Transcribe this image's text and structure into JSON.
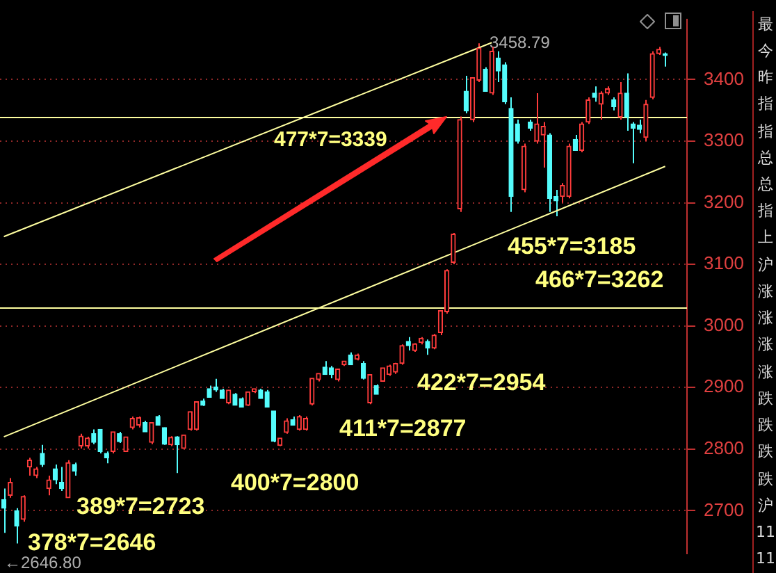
{
  "chart_data": {
    "type": "candlestick",
    "categories": [
      null,
      null,
      null,
      null,
      null,
      null,
      null,
      null,
      null,
      null,
      null,
      null,
      null,
      null,
      null,
      null,
      null,
      null,
      null,
      null,
      null,
      null,
      null,
      null,
      null,
      null,
      null,
      null,
      null,
      null,
      null,
      null,
      null,
      null,
      null,
      null,
      null,
      null,
      null,
      null,
      null,
      null,
      null,
      null,
      null,
      null,
      null,
      null,
      null,
      null,
      null,
      null,
      null,
      null,
      null,
      null,
      null,
      null,
      null,
      null,
      null,
      null,
      null,
      null,
      null,
      null,
      null,
      null,
      null,
      null,
      null,
      null,
      null,
      null,
      null,
      null,
      null,
      null,
      null,
      null,
      null,
      null,
      null,
      null,
      null,
      null,
      null,
      null,
      null,
      null,
      null,
      null,
      null,
      null,
      null,
      null,
      null,
      null,
      null,
      null,
      null,
      null,
      null,
      null
    ],
    "ohlc": [
      [
        2718,
        2736,
        2664,
        2704
      ],
      [
        2725,
        2753,
        2721,
        2746
      ],
      [
        2700,
        2704,
        2646.8,
        2675
      ],
      [
        2686,
        2725,
        2682,
        2723
      ],
      [
        2771,
        2786,
        2757,
        2782
      ],
      [
        2757,
        2771,
        2753,
        2768
      ],
      [
        2793,
        2807,
        2771,
        2775
      ],
      [
        2736,
        2757,
        2725,
        2750
      ],
      [
        2768,
        2775,
        2743,
        2750
      ],
      [
        2746,
        2771,
        2732,
        2736
      ],
      [
        2721,
        2782,
        2721,
        2778
      ],
      [
        2775,
        2778,
        2757,
        2764
      ],
      [
        2805,
        2825,
        2801,
        2821
      ],
      [
        2805,
        2820,
        2801,
        2818
      ],
      [
        2825,
        2832,
        2808,
        2811
      ],
      [
        2832,
        2832,
        2793,
        2796
      ],
      [
        2793,
        2796,
        2777,
        2786
      ],
      [
        2796,
        2828,
        2793,
        2828
      ],
      [
        2825,
        2828,
        2810,
        2812
      ],
      [
        2796,
        2820,
        2796,
        2820
      ],
      [
        2835,
        2853,
        2832,
        2850
      ],
      [
        2839,
        2853,
        2835,
        2851
      ],
      [
        2843,
        2846,
        2828,
        2828
      ],
      [
        2811,
        2843,
        2808,
        2843
      ],
      [
        2853,
        2855,
        2839,
        2839
      ],
      [
        2835,
        2835,
        2807,
        2808
      ],
      [
        2807,
        2821,
        2805,
        2819
      ],
      [
        2820,
        2821,
        2761,
        2807
      ],
      [
        2801,
        2823,
        2801,
        2823
      ],
      [
        2832,
        2861,
        2830,
        2861
      ],
      [
        2832,
        2877,
        2830,
        2877
      ],
      [
        2878,
        2882,
        2870,
        2871
      ],
      [
        2898,
        2903,
        2884,
        2884
      ],
      [
        2901,
        2914,
        2893,
        2896
      ],
      [
        2896,
        2898,
        2882,
        2882
      ],
      [
        2875,
        2896,
        2873,
        2896
      ],
      [
        2889,
        2891,
        2871,
        2871
      ],
      [
        2882,
        2884,
        2868,
        2868
      ],
      [
        2871,
        2893,
        2870,
        2893
      ],
      [
        2893,
        2898,
        2891,
        2898
      ],
      [
        2896,
        2898,
        2882,
        2882
      ],
      [
        2893,
        2896,
        2868,
        2868
      ],
      [
        2862,
        2862,
        2811,
        2813
      ],
      [
        2806,
        2818,
        2805,
        2818
      ],
      [
        2827,
        2850,
        2825,
        2846
      ],
      [
        2848,
        2853,
        2839,
        2839
      ],
      [
        2832,
        2855,
        2830,
        2853
      ],
      [
        2832,
        2853,
        2830,
        2850
      ],
      [
        2873,
        2915,
        2871,
        2915
      ],
      [
        2913,
        2923,
        2910,
        2923
      ],
      [
        2933,
        2943,
        2921,
        2921
      ],
      [
        2932,
        2935,
        2915,
        2921
      ],
      [
        2913,
        2930,
        2910,
        2930
      ],
      [
        2937,
        2943,
        2935,
        2943
      ],
      [
        2953,
        2957,
        2937,
        2937
      ],
      [
        2946,
        2955,
        2944,
        2953
      ],
      [
        2939,
        2943,
        2913,
        2915
      ],
      [
        2875,
        2921,
        2873,
        2921
      ],
      [
        2903,
        2905,
        2889,
        2889
      ],
      [
        2910,
        2932,
        2910,
        2932
      ],
      [
        2921,
        2937,
        2919,
        2935
      ],
      [
        2925,
        2940,
        2922,
        2939
      ],
      [
        2939,
        2970,
        2937,
        2968
      ],
      [
        2975,
        2982,
        2960,
        2968
      ],
      [
        2960,
        2972,
        2958,
        2971
      ],
      [
        2973,
        2982,
        2970,
        2980
      ],
      [
        2975,
        2978,
        2953,
        2964
      ],
      [
        2964,
        2987,
        2962,
        2985
      ],
      [
        2989,
        3025,
        2985,
        3025
      ],
      [
        3023,
        3092,
        3020,
        3090
      ],
      [
        3103,
        3151,
        3100,
        3149
      ],
      [
        3190,
        3340,
        3185,
        3335
      ],
      [
        3381,
        3406,
        3345,
        3349
      ],
      [
        3335,
        3403,
        3331,
        3403
      ],
      [
        3399,
        3458.79,
        3396,
        3451
      ],
      [
        3417,
        3420,
        3381,
        3381
      ],
      [
        3378,
        3453,
        3375,
        3446
      ],
      [
        3435,
        3446,
        3396,
        3414
      ],
      [
        3424,
        3428,
        3360,
        3364
      ],
      [
        3353,
        3371,
        3185,
        3210
      ],
      [
        3328,
        3335,
        3296,
        3300
      ],
      [
        3221,
        3296,
        3217,
        3292
      ],
      [
        3331,
        3335,
        3317,
        3321
      ],
      [
        3300,
        3378,
        3296,
        3328
      ],
      [
        3310,
        3331,
        3257,
        3324
      ],
      [
        3310,
        3313,
        3185,
        3207
      ],
      [
        3210,
        3221,
        3178,
        3203
      ],
      [
        3210,
        3232,
        3200,
        3228
      ],
      [
        3210,
        3296,
        3207,
        3292
      ],
      [
        3303,
        3310,
        3285,
        3285
      ],
      [
        3285,
        3331,
        3282,
        3328
      ],
      [
        3331,
        3371,
        3328,
        3367
      ],
      [
        3378,
        3389,
        3364,
        3371
      ],
      [
        3360,
        3381,
        3335,
        3378
      ],
      [
        3378,
        3389,
        3375,
        3385
      ],
      [
        3367,
        3371,
        3350,
        3356
      ],
      [
        3339,
        3396,
        3335,
        3378
      ],
      [
        3378,
        3410,
        3317,
        3339
      ],
      [
        3328,
        3331,
        3264,
        3321
      ],
      [
        3326,
        3335,
        3313,
        3319
      ],
      [
        3306,
        3367,
        3300,
        3360
      ],
      [
        3371,
        3446,
        3368,
        3442
      ],
      [
        3442,
        3453,
        3440,
        3449
      ],
      [
        3442,
        3444,
        3421,
        3439
      ]
    ],
    "colors": [
      "#54fcfc",
      "#ff3c3c",
      "#54fcfc",
      "#ff3c3c",
      "#ff3c3c",
      "#ff3c3c",
      "#54fcfc",
      "#ff3c3c",
      "#54fcfc",
      "#54fcfc",
      "#ff3c3c",
      "#54fcfc",
      "#ff3c3c",
      "#ff3c3c",
      "#54fcfc",
      "#54fcfc",
      "#54fcfc",
      "#ff3c3c",
      "#54fcfc",
      "#ff3c3c",
      "#ff3c3c",
      "#ff3c3c",
      "#54fcfc",
      "#ff3c3c",
      "#54fcfc",
      "#54fcfc",
      "#ff3c3c",
      "#54fcfc",
      "#ff3c3c",
      "#ff3c3c",
      "#ff3c3c",
      "#54fcfc",
      "#54fcfc",
      "#54fcfc",
      "#54fcfc",
      "#ff3c3c",
      "#54fcfc",
      "#54fcfc",
      "#ff3c3c",
      "#ff3c3c",
      "#54fcfc",
      "#54fcfc",
      "#54fcfc",
      "#ff3c3c",
      "#ff3c3c",
      "#54fcfc",
      "#ff3c3c",
      "#ff3c3c",
      "#ff3c3c",
      "#ff3c3c",
      "#54fcfc",
      "#54fcfc",
      "#ff3c3c",
      "#ff3c3c",
      "#54fcfc",
      "#ff3c3c",
      "#54fcfc",
      "#ff3c3c",
      "#54fcfc",
      "#ff3c3c",
      "#ff3c3c",
      "#ff3c3c",
      "#ff3c3c",
      "#54fcfc",
      "#ff3c3c",
      "#ff3c3c",
      "#54fcfc",
      "#ff3c3c",
      "#ff3c3c",
      "#ff3c3c",
      "#ff3c3c",
      "#ff3c3c",
      "#54fcfc",
      "#ff3c3c",
      "#ff3c3c",
      "#54fcfc",
      "#ff3c3c",
      "#54fcfc",
      "#54fcfc",
      "#54fcfc",
      "#54fcfc",
      "#ff3c3c",
      "#54fcfc",
      "#ff3c3c",
      "#ff3c3c",
      "#54fcfc",
      "#54fcfc",
      "#ff3c3c",
      "#ff3c3c",
      "#54fcfc",
      "#ff3c3c",
      "#ff3c3c",
      "#54fcfc",
      "#ff3c3c",
      "#ff3c3c",
      "#54fcfc",
      "#ff3c3c",
      "#54fcfc",
      "#54fcfc",
      "#54fcfc",
      "#ff3c3c",
      "#ff3c3c",
      "#ff3c3c",
      "#54fcfc"
    ],
    "series": [
      {
        "type": "line",
        "color": "#ffffa0",
        "values": [
          3145,
          null,
          null,
          null,
          null,
          null,
          null,
          null,
          null,
          null,
          null,
          null,
          null,
          null,
          null,
          null,
          null,
          null,
          null,
          null,
          null,
          null,
          null,
          null,
          null,
          null,
          null,
          null,
          null,
          null,
          null,
          null,
          null,
          null,
          null,
          null,
          null,
          null,
          null,
          null,
          null,
          null,
          null,
          null,
          null,
          null,
          null,
          null,
          null,
          null,
          null,
          null,
          null,
          null,
          null,
          null,
          null,
          null,
          null,
          null,
          null,
          null,
          null,
          null,
          null,
          null,
          null,
          null,
          null,
          null,
          null,
          null,
          null,
          null,
          null,
          null,
          3460,
          null,
          null,
          null,
          null,
          null,
          null,
          null,
          null,
          null,
          null,
          null,
          null,
          null,
          null,
          null,
          null,
          null,
          null,
          null,
          null,
          null,
          null,
          null,
          null,
          null,
          null,
          null
        ]
      },
      {
        "type": "line",
        "color": "#ffffa0",
        "values": [
          2820,
          null,
          null,
          null,
          null,
          null,
          null,
          null,
          null,
          null,
          null,
          null,
          null,
          null,
          null,
          null,
          null,
          null,
          null,
          null,
          null,
          null,
          null,
          null,
          null,
          null,
          null,
          null,
          null,
          null,
          null,
          null,
          null,
          null,
          null,
          null,
          null,
          null,
          null,
          null,
          null,
          null,
          null,
          null,
          null,
          null,
          null,
          null,
          null,
          null,
          null,
          null,
          null,
          null,
          null,
          null,
          null,
          null,
          null,
          null,
          null,
          null,
          null,
          null,
          null,
          null,
          null,
          null,
          null,
          null,
          null,
          null,
          null,
          null,
          null,
          null,
          null,
          null,
          null,
          null,
          null,
          null,
          null,
          null,
          null,
          null,
          null,
          null,
          null,
          null,
          null,
          null,
          null,
          null,
          null,
          null,
          null,
          null,
          null,
          null,
          null,
          null,
          null,
          3259
        ]
      }
    ],
    "ref_lines": [
      {
        "axis": "y",
        "value": 3339,
        "color": "#ffffa0"
      },
      {
        "axis": "y",
        "value": 3030,
        "color": "#ffffa0"
      }
    ],
    "annotations": [
      "3458.79",
      "←2646.80",
      "378*7=2646",
      "389*7=2723",
      "400*7=2800",
      "411*7=2877",
      "422*7=2954",
      "455*7=3185",
      "477*7=3339",
      "466*7=3262",
      "最",
      "今",
      "昨",
      "指",
      "指",
      "总",
      "总",
      "指",
      "上",
      "沪",
      "涨",
      "涨",
      "涨",
      "涨",
      "跌",
      "跌",
      "跌",
      "跌",
      "沪",
      "11",
      "11"
    ],
    "ylim": [
      2630,
      3498
    ],
    "yticks": [
      2700,
      2800,
      2900,
      3000,
      3100,
      3200,
      3300,
      3400
    ],
    "grid": "y",
    "tick_labels": "y"
  }
}
